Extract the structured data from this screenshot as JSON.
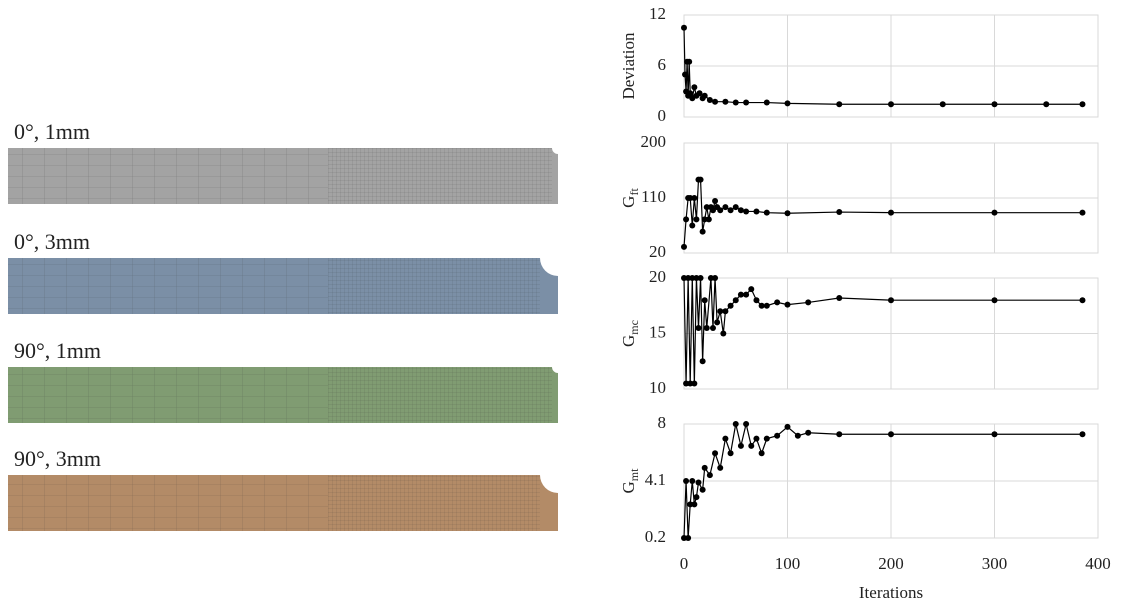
{
  "specimens": [
    {
      "label": "0°, 1mm",
      "color": "#a3a3a3"
    },
    {
      "label": "0°, 3mm",
      "color": "#7b8fa6"
    },
    {
      "label": "90°, 1mm",
      "color": "#809c72"
    },
    {
      "label": "90°, 3mm",
      "color": "#b38b67"
    }
  ],
  "chart_data": [
    {
      "type": "line",
      "ylabel": "Deviation",
      "color": "#000000",
      "grid": true,
      "xlim": [
        0,
        400
      ],
      "xticks": [
        0,
        100,
        200,
        300,
        400
      ],
      "ylim": [
        0,
        12
      ],
      "yticks": [
        0,
        6,
        12
      ],
      "x": [
        0,
        1,
        2,
        3,
        4,
        5,
        6,
        8,
        10,
        12,
        15,
        18,
        20,
        25,
        30,
        40,
        50,
        60,
        80,
        100,
        150,
        200,
        250,
        300,
        350,
        385
      ],
      "values": [
        10.5,
        5,
        3,
        6.5,
        2.5,
        6.5,
        2.8,
        2.2,
        3.5,
        2.5,
        2.8,
        2.2,
        2.5,
        2.0,
        1.8,
        1.8,
        1.7,
        1.7,
        1.7,
        1.6,
        1.5,
        1.5,
        1.5,
        1.5,
        1.5,
        1.5
      ]
    },
    {
      "type": "line",
      "ylabel": "G",
      "ylabel_sub": "ft",
      "color": "#000000",
      "grid": true,
      "xlim": [
        0,
        400
      ],
      "xticks": [
        0,
        100,
        200,
        300,
        400
      ],
      "ylim": [
        20,
        200
      ],
      "yticks": [
        20,
        110,
        200
      ],
      "x": [
        0,
        2,
        4,
        6,
        8,
        10,
        12,
        14,
        16,
        18,
        20,
        22,
        24,
        26,
        28,
        30,
        32,
        35,
        40,
        45,
        50,
        55,
        60,
        70,
        80,
        100,
        150,
        200,
        300,
        385
      ],
      "values": [
        30,
        75,
        110,
        110,
        65,
        110,
        75,
        140,
        140,
        55,
        75,
        95,
        75,
        95,
        90,
        105,
        95,
        90,
        95,
        90,
        95,
        90,
        88,
        88,
        86,
        85,
        87,
        86,
        86,
        86
      ]
    },
    {
      "type": "line",
      "ylabel": "G",
      "ylabel_sub": "mc",
      "color": "#000000",
      "grid": true,
      "xlim": [
        0,
        400
      ],
      "xticks": [
        0,
        100,
        200,
        300,
        400
      ],
      "ylim": [
        10,
        20
      ],
      "yticks": [
        10,
        15,
        20
      ],
      "x": [
        0,
        2,
        4,
        6,
        8,
        10,
        12,
        14,
        16,
        18,
        20,
        22,
        26,
        28,
        30,
        32,
        35,
        38,
        40,
        45,
        50,
        55,
        60,
        65,
        70,
        75,
        80,
        90,
        100,
        120,
        150,
        200,
        300,
        385
      ],
      "values": [
        20,
        10.5,
        20,
        10.5,
        20,
        10.5,
        20,
        15.5,
        20,
        12.5,
        18,
        15.5,
        20,
        15.5,
        20,
        16,
        17,
        15,
        17,
        17.5,
        18,
        18.5,
        18.5,
        19,
        18,
        17.5,
        17.5,
        17.8,
        17.6,
        17.8,
        18.2,
        18,
        18,
        18
      ]
    },
    {
      "type": "line",
      "ylabel": "G",
      "ylabel_sub": "mt",
      "xlabel": "Iterations",
      "color": "#000000",
      "grid": true,
      "xlim": [
        0,
        400
      ],
      "xticks": [
        0,
        100,
        200,
        300,
        400
      ],
      "ylim": [
        0.2,
        8
      ],
      "yticks": [
        0.2,
        4.1,
        8
      ],
      "x": [
        0,
        2,
        4,
        6,
        8,
        10,
        12,
        14,
        18,
        20,
        25,
        30,
        35,
        40,
        45,
        50,
        55,
        60,
        65,
        70,
        75,
        80,
        90,
        100,
        110,
        120,
        150,
        200,
        300,
        385
      ],
      "values": [
        0.2,
        4.1,
        0.2,
        2.5,
        4.1,
        2.5,
        3,
        4,
        3.5,
        5,
        4.5,
        6,
        5,
        7,
        6,
        8,
        6.5,
        8,
        6.5,
        7,
        6,
        7,
        7.2,
        7.8,
        7.2,
        7.4,
        7.3,
        7.3,
        7.3,
        7.3
      ]
    }
  ]
}
